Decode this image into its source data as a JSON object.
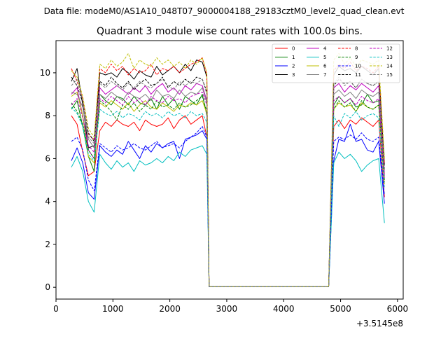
{
  "chart_data": {
    "type": "line",
    "suptitle": "Data file: modeM0/AS1A10_048T07_9000004188_29183cztM0_level2_quad_clean.evt",
    "title": "Quadrant 3 module wise count rates with 100.0s bins.",
    "xlabel": "",
    "ylabel": "",
    "offset_label": "+3.5145e8",
    "xlim": [
      0,
      6100
    ],
    "ylim": [
      -0.55,
      11.5
    ],
    "xticks": [
      0,
      1000,
      2000,
      3000,
      4000,
      5000,
      6000
    ],
    "xtick_labels": [
      "0",
      "1000",
      "2000",
      "3000",
      "4000",
      "5000",
      "6000"
    ],
    "yticks": [
      0,
      2,
      4,
      6,
      8,
      10
    ],
    "ytick_labels": [
      "0",
      "2",
      "4",
      "6",
      "8",
      "10"
    ],
    "grid": false,
    "legend_position": "top-right",
    "x": [
      270,
      370,
      470,
      570,
      670,
      770,
      870,
      970,
      1070,
      1170,
      1270,
      1370,
      1470,
      1570,
      1670,
      1770,
      1870,
      1970,
      2070,
      2170,
      2270,
      2370,
      2470,
      2570,
      2650,
      2690,
      4790,
      4880,
      4970,
      5070,
      5170,
      5270,
      5370,
      5470,
      5570,
      5670,
      5770
    ],
    "series": [
      {
        "name": "0",
        "color": "#ff0000",
        "dash": "solid",
        "values": [
          8.0,
          7.6,
          6.3,
          5.2,
          5.4,
          7.3,
          7.7,
          7.5,
          7.8,
          7.6,
          7.5,
          7.7,
          7.3,
          7.8,
          7.6,
          7.5,
          7.6,
          7.9,
          7.4,
          7.8,
          8.0,
          7.6,
          7.8,
          8.0,
          7.0,
          0.03,
          0.03,
          7.5,
          7.8,
          7.4,
          7.8,
          7.6,
          7.9,
          7.7,
          7.5,
          7.8,
          4.2
        ]
      },
      {
        "name": "1",
        "color": "#008000",
        "dash": "solid",
        "values": [
          8.3,
          8.7,
          7.5,
          6.1,
          5.4,
          9.0,
          8.7,
          8.5,
          8.9,
          8.8,
          8.5,
          8.9,
          8.6,
          8.5,
          8.8,
          8.3,
          8.9,
          8.5,
          8.8,
          8.3,
          8.9,
          8.7,
          8.5,
          9.0,
          8.0,
          0.03,
          0.03,
          8.5,
          8.9,
          8.6,
          8.8,
          8.4,
          8.5,
          9.0,
          8.6,
          8.7,
          5.0
        ]
      },
      {
        "name": "2",
        "color": "#0000ff",
        "dash": "solid",
        "values": [
          5.9,
          6.5,
          5.8,
          4.4,
          4.1,
          6.6,
          6.3,
          6.1,
          6.4,
          6.2,
          6.8,
          6.4,
          6.0,
          6.6,
          6.3,
          6.7,
          6.5,
          6.7,
          6.8,
          6.0,
          6.9,
          7.0,
          7.1,
          7.3,
          6.9,
          0.03,
          0.03,
          5.9,
          6.9,
          6.8,
          7.6,
          6.8,
          6.9,
          6.4,
          6.3,
          6.8,
          3.9
        ]
      },
      {
        "name": "3",
        "color": "#000000",
        "dash": "solid",
        "values": [
          9.6,
          10.2,
          8.5,
          6.5,
          6.6,
          10.0,
          9.9,
          10.0,
          9.8,
          10.2,
          10.0,
          9.7,
          10.1,
          9.9,
          9.8,
          10.3,
          9.9,
          10.1,
          10.3,
          10.0,
          10.4,
          10.1,
          10.6,
          10.5,
          9.8,
          0.03,
          0.03,
          9.9,
          10.3,
          10.1,
          10.2,
          10.0,
          10.3,
          10.1,
          9.9,
          10.2,
          5.7
        ]
      },
      {
        "name": "4",
        "color": "#bf00bf",
        "dash": "solid",
        "values": [
          9.0,
          9.3,
          8.0,
          6.4,
          6.0,
          9.3,
          9.0,
          9.2,
          9.4,
          9.2,
          9.0,
          9.3,
          9.1,
          9.4,
          9.0,
          9.3,
          9.5,
          9.1,
          9.3,
          9.0,
          9.4,
          9.2,
          9.5,
          9.4,
          8.7,
          0.03,
          0.03,
          9.3,
          9.5,
          9.1,
          9.4,
          9.2,
          9.5,
          9.3,
          9.1,
          9.4,
          5.3
        ]
      },
      {
        "name": "5",
        "color": "#00bfbf",
        "dash": "solid",
        "values": [
          5.6,
          6.1,
          5.4,
          4.0,
          3.5,
          6.2,
          5.8,
          5.5,
          5.9,
          5.6,
          5.8,
          5.4,
          5.9,
          5.7,
          5.8,
          6.0,
          5.8,
          6.1,
          5.9,
          6.3,
          6.1,
          6.4,
          6.5,
          6.6,
          6.2,
          0.03,
          0.03,
          5.8,
          6.3,
          6.0,
          6.2,
          5.9,
          5.4,
          5.7,
          5.9,
          6.0,
          3.0
        ]
      },
      {
        "name": "6",
        "color": "#bfbf00",
        "dash": "solid",
        "values": [
          8.9,
          9.1,
          8.0,
          6.1,
          5.8,
          8.6,
          8.4,
          8.7,
          8.5,
          8.3,
          8.6,
          8.2,
          8.5,
          8.7,
          8.4,
          8.3,
          8.6,
          8.4,
          8.2,
          8.5,
          8.4,
          8.6,
          8.5,
          8.7,
          8.1,
          0.03,
          0.03,
          8.3,
          8.6,
          8.4,
          8.5,
          8.2,
          8.6,
          8.4,
          8.3,
          8.5,
          4.8
        ]
      },
      {
        "name": "7",
        "color": "#808080",
        "dash": "solid",
        "values": [
          9.1,
          9.0,
          8.4,
          6.9,
          6.5,
          9.0,
          8.8,
          9.1,
          8.9,
          8.7,
          9.1,
          8.9,
          8.8,
          9.0,
          8.7,
          9.2,
          8.9,
          9.0,
          8.8,
          9.2,
          8.9,
          9.1,
          9.0,
          9.3,
          8.6,
          0.03,
          0.03,
          9.0,
          9.2,
          8.9,
          9.1,
          8.8,
          9.2,
          9.0,
          8.9,
          9.1,
          5.2
        ]
      },
      {
        "name": "8",
        "color": "#ff0000",
        "dash": "dashed",
        "values": [
          10.2,
          9.6,
          8.8,
          7.1,
          6.9,
          10.2,
          10.0,
          10.4,
          10.1,
          10.3,
          9.9,
          10.2,
          10.0,
          10.1,
          10.4,
          9.9,
          10.2,
          10.1,
          10.3,
          10.0,
          10.2,
          10.4,
          10.5,
          10.7,
          9.9,
          0.03,
          0.03,
          10.1,
          10.4,
          10.2,
          10.5,
          10.1,
          10.3,
          10.2,
          10.0,
          10.3,
          5.8
        ]
      },
      {
        "name": "9",
        "color": "#008000",
        "dash": "dashed",
        "values": [
          8.6,
          8.2,
          7.6,
          6.4,
          6.0,
          8.7,
          8.5,
          8.2,
          7.8,
          8.5,
          8.3,
          8.6,
          8.2,
          8.5,
          8.3,
          8.7,
          8.4,
          8.5,
          8.3,
          8.6,
          8.4,
          8.5,
          8.7,
          8.9,
          8.2,
          0.03,
          0.03,
          8.3,
          8.7,
          8.4,
          8.6,
          8.2,
          8.7,
          8.4,
          8.3,
          8.5,
          4.9
        ]
      },
      {
        "name": "10",
        "color": "#0000ff",
        "dash": "dashed",
        "values": [
          6.8,
          7.0,
          6.4,
          5.0,
          4.5,
          6.7,
          6.5,
          6.3,
          6.6,
          6.4,
          6.5,
          6.7,
          6.5,
          6.4,
          6.6,
          6.8,
          6.5,
          6.6,
          6.7,
          6.5,
          6.8,
          7.0,
          7.2,
          7.5,
          7.0,
          0.03,
          0.03,
          6.8,
          7.0,
          6.9,
          7.1,
          6.9,
          7.2,
          6.9,
          6.8,
          7.0,
          4.3
        ]
      },
      {
        "name": "11",
        "color": "#000000",
        "dash": "dashed",
        "values": [
          9.8,
          9.4,
          8.6,
          7.2,
          6.8,
          9.6,
          9.4,
          9.8,
          9.5,
          9.3,
          9.6,
          9.2,
          9.5,
          9.7,
          9.4,
          9.5,
          9.8,
          9.3,
          9.6,
          9.4,
          9.7,
          9.5,
          9.8,
          9.7,
          9.1,
          0.03,
          0.03,
          9.4,
          9.7,
          9.5,
          9.6,
          9.3,
          9.7,
          9.5,
          9.4,
          9.6,
          5.5
        ]
      },
      {
        "name": "12",
        "color": "#bf00bf",
        "dash": "dashed",
        "values": [
          8.5,
          8.8,
          7.9,
          6.6,
          6.3,
          8.8,
          8.6,
          8.9,
          8.7,
          8.5,
          8.9,
          8.6,
          8.8,
          8.5,
          8.9,
          8.7,
          8.6,
          8.9,
          8.7,
          8.8,
          8.6,
          8.9,
          9.0,
          9.1,
          8.5,
          0.03,
          0.03,
          8.7,
          8.9,
          8.6,
          8.8,
          8.5,
          8.9,
          8.7,
          8.6,
          8.8,
          5.1
        ]
      },
      {
        "name": "13",
        "color": "#00bfbf",
        "dash": "dashed",
        "values": [
          8.4,
          8.1,
          7.5,
          6.2,
          5.9,
          8.3,
          8.1,
          8.0,
          8.2,
          7.9,
          8.1,
          8.0,
          7.8,
          8.2,
          8.0,
          8.1,
          7.9,
          8.2,
          8.0,
          8.1,
          7.9,
          8.2,
          8.0,
          8.1,
          7.7,
          0.03,
          0.03,
          8.0,
          7.5,
          8.1,
          7.9,
          8.2,
          7.8,
          8.0,
          8.1,
          7.9,
          4.6
        ]
      },
      {
        "name": "14",
        "color": "#bfbf00",
        "dash": "dashed",
        "values": [
          10.1,
          9.8,
          8.9,
          7.4,
          7.0,
          10.4,
          10.2,
          10.6,
          10.3,
          10.5,
          10.9,
          10.2,
          10.6,
          10.4,
          10.3,
          10.7,
          10.4,
          10.6,
          10.3,
          10.5,
          10.2,
          10.6,
          10.4,
          10.7,
          10.0,
          0.03,
          0.03,
          10.6,
          10.9,
          10.4,
          10.7,
          10.3,
          10.6,
          10.5,
          10.4,
          10.6,
          6.0
        ]
      },
      {
        "name": "15",
        "color": "#808080",
        "dash": "dashed",
        "values": [
          9.4,
          9.7,
          8.7,
          7.0,
          6.7,
          9.5,
          9.3,
          9.6,
          9.4,
          9.2,
          9.5,
          9.3,
          9.6,
          9.4,
          9.3,
          9.5,
          9.7,
          9.4,
          9.2,
          9.6,
          9.4,
          9.6,
          9.5,
          9.7,
          9.0,
          0.03,
          0.03,
          9.5,
          9.8,
          9.4,
          9.6,
          9.3,
          9.7,
          9.5,
          9.4,
          9.6,
          5.4
        ]
      }
    ]
  }
}
